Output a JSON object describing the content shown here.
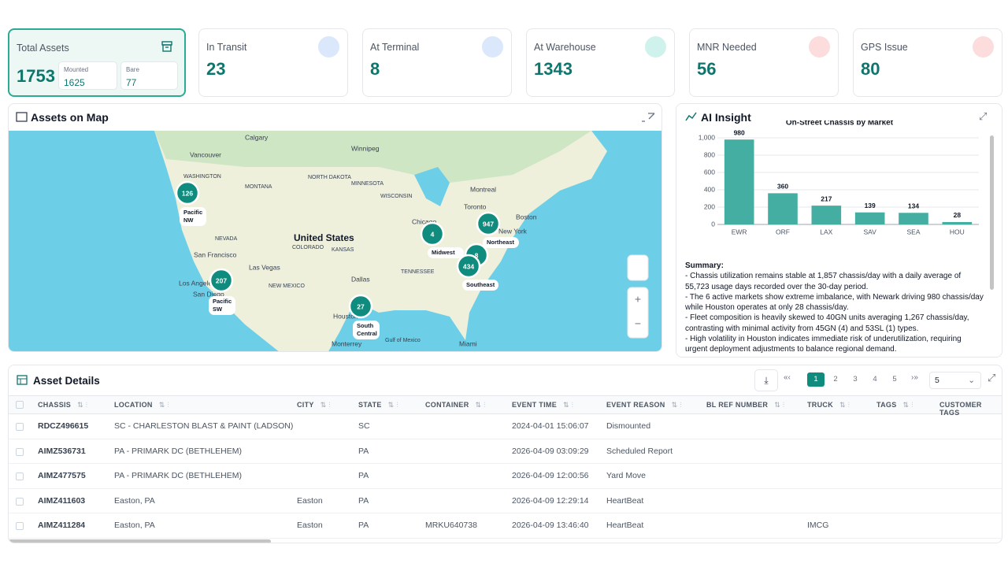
{
  "kpis": [
    {
      "label": "Total Assets",
      "value": 1753,
      "sub": [
        {
          "label": "Mounted",
          "value": 1625
        },
        {
          "label": "Bare",
          "value": 77
        }
      ]
    },
    {
      "label": "In Transit",
      "value": 23
    },
    {
      "label": "At Terminal",
      "value": 8
    },
    {
      "label": "At Warehouse",
      "value": 1343
    },
    {
      "label": "MNR Needed",
      "value": 56
    },
    {
      "label": "GPS Issue",
      "value": 80
    }
  ],
  "map": {
    "title": "Assets on Map",
    "clusters": [
      {
        "count": 126,
        "label": "Pacific NW"
      },
      {
        "count": 207,
        "label": "Pacific SW"
      },
      {
        "count": 4,
        "label": "Midwest"
      },
      {
        "count": 947,
        "label": "Northeast"
      },
      {
        "count": 8
      },
      {
        "count": 434,
        "label": "Southeast"
      },
      {
        "count": 27,
        "label": "South Central"
      }
    ],
    "places": [
      "Calgary",
      "Winnipeg",
      "Vancouver",
      "WASHINGTON",
      "MONTANA",
      "NORTH DAKOTA",
      "MINNESOTA",
      "WISCONSIN",
      "Montreal",
      "Toronto",
      "Boston",
      "New York",
      "Chicago",
      "United States",
      "NEVADA",
      "San Francisco",
      "Las Vegas",
      "Los Angeles",
      "San Diego",
      "NEW MEXICO",
      "COLORADO",
      "KANSAS",
      "Dallas",
      "Houston",
      "TENNESSEE",
      "Monterrey",
      "Gulf of Mexico",
      "Miami"
    ]
  },
  "insight": {
    "title": "AI Insight",
    "summary_title": "Summary:",
    "summary": [
      "- Chassis utilization remains stable at 1,857 chassis/day with a daily average of 55,723 usage days recorded over the 30-day period.",
      "- The 6 active markets show extreme imbalance, with Newark driving 980 chassis/day while Houston operates at only 28 chassis/day.",
      "- Fleet composition is heavily skewed to 40GN units averaging 1,267 chassis/day, contrasting with minimal activity from 45GN (4) and 53SL (1) types.",
      "- High volatility in Houston indicates immediate risk of underutilization, requiring urgent deployment adjustments to balance regional demand."
    ]
  },
  "chart_data": {
    "type": "bar",
    "title": "On-Street Chassis by Market",
    "categories": [
      "EWR",
      "ORF",
      "LAX",
      "SAV",
      "SEA",
      "HOU"
    ],
    "values": [
      980,
      360,
      217,
      139,
      134,
      28
    ],
    "color": "#45aea3",
    "ylim": [
      0,
      1000
    ],
    "yticks": [
      0,
      200,
      400,
      600,
      800,
      {
        "value": 1000,
        "label": "1,000"
      }
    ],
    "grid": true
  },
  "table": {
    "title": "Asset Details",
    "pages": [
      1,
      2,
      3,
      4,
      5
    ],
    "page_size": 5,
    "columns": [
      "CHASSIS",
      "LOCATION",
      "CITY",
      "STATE",
      "CONTAINER",
      "EVENT TIME",
      "EVENT REASON",
      "BL REF NUMBER",
      "TRUCK",
      "TAGS",
      "CUSTOMER TAGS"
    ],
    "rows": [
      [
        "RDCZ496615",
        "SC - CHARLESTON BLAST & PAINT (LADSON)",
        null,
        "SC",
        null,
        "2024-04-01 15:06:07",
        "Dismounted",
        null,
        null,
        null,
        null
      ],
      [
        "AIMZ536731",
        "PA - PRIMARK DC (BETHLEHEM)",
        null,
        "PA",
        null,
        "2026-04-09 03:09:29",
        "Scheduled Report",
        null,
        null,
        null,
        null
      ],
      [
        "AIMZ477575",
        "PA - PRIMARK DC (BETHLEHEM)",
        null,
        "PA",
        null,
        "2026-04-09 12:00:56",
        "Yard Move",
        null,
        null,
        null,
        null
      ],
      [
        "AIMZ411603",
        "Easton, PA",
        "Easton",
        "PA",
        null,
        "2026-04-09 12:29:14",
        "HeartBeat",
        null,
        null,
        null,
        null
      ],
      [
        "AIMZ411284",
        "Easton, PA",
        "Easton",
        "PA",
        "MRKU640738",
        "2026-04-09 13:46:40",
        "HeartBeat",
        null,
        "IMCG",
        null,
        null
      ]
    ]
  }
}
